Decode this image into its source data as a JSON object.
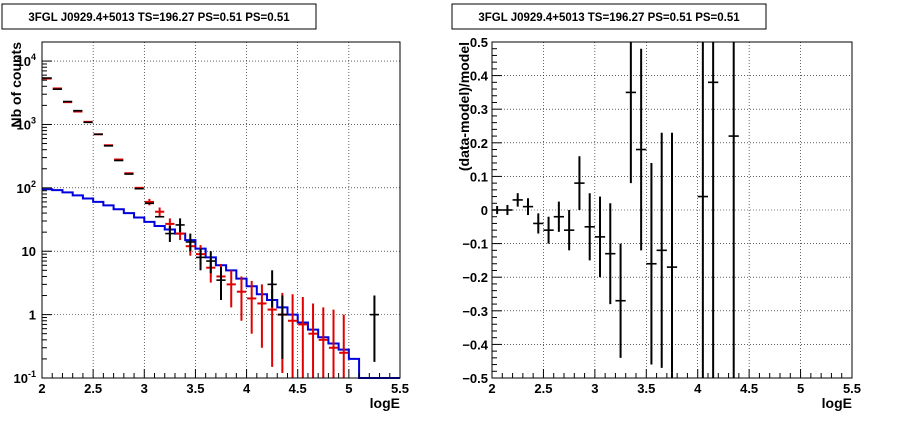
{
  "chart_data": [
    {
      "type": "line",
      "title": "3FGL J0929.4+5013 TS=196.27 PS=0.51 PS=0.51",
      "xlabel": "logE",
      "ylabel": "Nb of counts",
      "xlim": [
        2,
        5.5
      ],
      "ylim": [
        0.1,
        20000
      ],
      "ylog": true,
      "grid": true,
      "x_ticks": [
        {
          "v": 2,
          "label": "2"
        },
        {
          "v": 2.5,
          "label": "2.5"
        },
        {
          "v": 3,
          "label": "3"
        },
        {
          "v": 3.5,
          "label": "3.5"
        },
        {
          "v": 4,
          "label": "4"
        },
        {
          "v": 4.5,
          "label": "4.5"
        },
        {
          "v": 5,
          "label": "5"
        },
        {
          "v": 5.5,
          "label": "5.5"
        }
      ],
      "y_ticks": [
        {
          "v": 0.1,
          "label": "10<sup>-1</sup>",
          "base": "10",
          "exp": "-1",
          "kind": "plain"
        },
        {
          "v": 1,
          "label": "1",
          "kind": "plain"
        },
        {
          "v": 10,
          "label": "10",
          "kind": "plain"
        },
        {
          "v": 100,
          "base": "10",
          "exp": "2",
          "kind": "pow"
        },
        {
          "v": 1000,
          "base": "10",
          "exp": "3",
          "kind": "pow"
        },
        {
          "v": 10000,
          "base": "10",
          "exp": "4",
          "kind": "pow"
        }
      ],
      "bin_edges": [
        2.0,
        2.1,
        2.2,
        2.3,
        2.4,
        2.5,
        2.6,
        2.7,
        2.8,
        2.9,
        3.0,
        3.1,
        3.2,
        3.3,
        3.4,
        3.5,
        3.6,
        3.7,
        3.8,
        3.9,
        4.0,
        4.1,
        4.2,
        4.3,
        4.4,
        4.5,
        4.6,
        4.7,
        4.8,
        4.9,
        5.0,
        5.1,
        5.2,
        5.3,
        5.4,
        5.5
      ],
      "series": [
        {
          "kind": "data",
          "color": "#000000",
          "points": [
            {
              "x": 2.05,
              "y": 5400
            },
            {
              "x": 2.15,
              "y": 3600
            },
            {
              "x": 2.25,
              "y": 2300
            },
            {
              "x": 2.35,
              "y": 1650
            },
            {
              "x": 2.45,
              "y": 1080
            },
            {
              "x": 2.55,
              "y": 700
            },
            {
              "x": 2.65,
              "y": 460
            },
            {
              "x": 2.75,
              "y": 270
            },
            {
              "x": 2.85,
              "y": 165
            },
            {
              "x": 2.95,
              "y": 97
            },
            {
              "x": 3.05,
              "y": 57
            },
            {
              "x": 3.15,
              "y": 35
            },
            {
              "x": 3.25,
              "y": 19,
              "lo": 14,
              "hi": 25
            },
            {
              "x": 3.35,
              "y": 26,
              "lo": 20,
              "hi": 33
            },
            {
              "x": 3.45,
              "y": 14,
              "lo": 10,
              "hi": 19
            },
            {
              "x": 3.55,
              "y": 8,
              "lo": 5,
              "hi": 11
            },
            {
              "x": 3.65,
              "y": 7,
              "lo": 4.5,
              "hi": 10
            },
            {
              "x": 3.75,
              "y": 3.5,
              "lo": 1.7,
              "hi": 5.6
            },
            {
              "x": 4.25,
              "y": 3,
              "lo": 1.3,
              "hi": 5
            },
            {
              "x": 4.35,
              "y": 1,
              "lo": 0.2,
              "hi": 2
            },
            {
              "x": 5.25,
              "y": 1,
              "lo": 0.18,
              "hi": 2
            }
          ]
        },
        {
          "kind": "model-errors",
          "color": "#e00000",
          "points": [
            {
              "x": 2.05,
              "y": 5300
            },
            {
              "x": 2.15,
              "y": 3700
            },
            {
              "x": 2.25,
              "y": 2250
            },
            {
              "x": 2.35,
              "y": 1600
            },
            {
              "x": 2.45,
              "y": 1100
            },
            {
              "x": 2.55,
              "y": 700
            },
            {
              "x": 2.65,
              "y": 470
            },
            {
              "x": 2.75,
              "y": 280
            },
            {
              "x": 2.85,
              "y": 170
            },
            {
              "x": 2.95,
              "y": 100
            },
            {
              "x": 3.05,
              "y": 60,
              "lo": 53,
              "hi": 67
            },
            {
              "x": 3.15,
              "y": 42,
              "lo": 36,
              "hi": 49
            },
            {
              "x": 3.25,
              "y": 27,
              "lo": 22,
              "hi": 33
            },
            {
              "x": 3.35,
              "y": 19,
              "lo": 15,
              "hi": 24
            },
            {
              "x": 3.45,
              "y": 12,
              "lo": 8.5,
              "hi": 16
            },
            {
              "x": 3.55,
              "y": 9,
              "lo": 6,
              "hi": 12.5
            },
            {
              "x": 3.65,
              "y": 5.5,
              "lo": 3.2,
              "hi": 8
            },
            {
              "x": 3.75,
              "y": 4,
              "lo": 2,
              "hi": 6.3
            },
            {
              "x": 3.85,
              "y": 3,
              "lo": 1.3,
              "hi": 5
            },
            {
              "x": 3.95,
              "y": 2.3,
              "lo": 0.8,
              "hi": 4
            },
            {
              "x": 4.05,
              "y": 1.8,
              "lo": 0.5,
              "hi": 3.4
            },
            {
              "x": 4.15,
              "y": 1.5,
              "lo": 0.3,
              "hi": 3
            },
            {
              "x": 4.25,
              "y": 1.2,
              "lo": 0.15,
              "hi": 2.5
            },
            {
              "x": 4.35,
              "y": 1,
              "lo": 0.12,
              "hi": 2.2
            },
            {
              "x": 4.45,
              "y": 0.8,
              "lo": 0.1,
              "hi": 2.1
            },
            {
              "x": 4.55,
              "y": 0.7,
              "lo": 0.1,
              "hi": 1.9
            },
            {
              "x": 4.65,
              "y": 0.5,
              "lo": 0.1,
              "hi": 1.5
            },
            {
              "x": 4.75,
              "y": 0.4,
              "lo": 0.1,
              "hi": 1.3
            },
            {
              "x": 4.85,
              "y": 0.3,
              "lo": 0.1,
              "hi": 1.2
            },
            {
              "x": 4.95,
              "y": 0.25,
              "lo": 0.1,
              "hi": 1
            }
          ]
        },
        {
          "kind": "source-model-hist",
          "color": "#0000dd",
          "values": [
            95,
            92,
            85,
            76,
            68,
            60,
            53,
            46,
            40,
            34,
            29,
            25,
            22,
            19,
            15,
            11,
            8,
            6,
            5,
            3.7,
            2.8,
            2.1,
            1.7,
            1.3,
            1.0,
            0.75,
            0.58,
            0.44,
            0.35,
            0.28,
            0.2,
            0.1,
            0.1,
            0.1,
            0.1
          ]
        }
      ]
    },
    {
      "type": "scatter",
      "title": "3FGL J0929.4+5013 TS=196.27 PS=0.51 PS=0.51",
      "xlabel": "logE",
      "ylabel": "(data-model)/model",
      "xlim": [
        2,
        5.5
      ],
      "ylim": [
        -0.5,
        0.5
      ],
      "grid": true,
      "x_ticks": [
        {
          "v": 2,
          "label": "2"
        },
        {
          "v": 2.5,
          "label": "2.5"
        },
        {
          "v": 3,
          "label": "3"
        },
        {
          "v": 3.5,
          "label": "3.5"
        },
        {
          "v": 4,
          "label": "4"
        },
        {
          "v": 4.5,
          "label": "4.5"
        },
        {
          "v": 5,
          "label": "5"
        },
        {
          "v": 5.5,
          "label": "5.5"
        }
      ],
      "y_ticks": [
        {
          "v": -0.5,
          "label": "−0.5"
        },
        {
          "v": -0.4,
          "label": "−0.4"
        },
        {
          "v": -0.3,
          "label": "−0.3"
        },
        {
          "v": -0.2,
          "label": "−0.2"
        },
        {
          "v": -0.1,
          "label": "−0.1"
        },
        {
          "v": 0,
          "label": "0"
        },
        {
          "v": 0.1,
          "label": "0.1"
        },
        {
          "v": 0.2,
          "label": "0.2"
        },
        {
          "v": 0.3,
          "label": "0.3"
        },
        {
          "v": 0.4,
          "label": "0.4"
        },
        {
          "v": 0.5,
          "label": "0.5"
        }
      ],
      "series": [
        {
          "kind": "residuals",
          "color": "#000000",
          "points": [
            {
              "x": 2.05,
              "y": 0.0,
              "err": 0.012
            },
            {
              "x": 2.15,
              "y": 0.0,
              "err": 0.015
            },
            {
              "x": 2.25,
              "y": 0.03,
              "err": 0.02
            },
            {
              "x": 2.35,
              "y": 0.01,
              "err": 0.025
            },
            {
              "x": 2.45,
              "y": -0.04,
              "err": 0.03
            },
            {
              "x": 2.55,
              "y": -0.06,
              "err": 0.04
            },
            {
              "x": 2.65,
              "y": -0.02,
              "err": 0.045
            },
            {
              "x": 2.75,
              "y": -0.06,
              "err": 0.06
            },
            {
              "x": 2.85,
              "y": 0.08,
              "err": 0.08
            },
            {
              "x": 2.95,
              "y": -0.05,
              "err": 0.1
            },
            {
              "x": 3.05,
              "y": -0.08,
              "err": 0.12
            },
            {
              "x": 3.15,
              "y": -0.13,
              "err": 0.15
            },
            {
              "x": 3.25,
              "y": -0.27,
              "err": 0.17
            },
            {
              "x": 3.35,
              "y": 0.35,
              "err": 0.27
            },
            {
              "x": 3.45,
              "y": 0.18,
              "err": 0.3
            },
            {
              "x": 3.55,
              "y": -0.16,
              "err": 0.3
            },
            {
              "x": 3.65,
              "y": -0.12,
              "err": 0.35
            },
            {
              "x": 3.75,
              "y": -0.17,
              "err": 0.4
            },
            {
              "x": 4.05,
              "y": 0.04,
              "err": 0.6
            },
            {
              "x": 4.15,
              "y": 0.38,
              "err": 0.9
            },
            {
              "x": 4.35,
              "y": 0.22,
              "err": 0.9
            }
          ]
        }
      ]
    }
  ]
}
